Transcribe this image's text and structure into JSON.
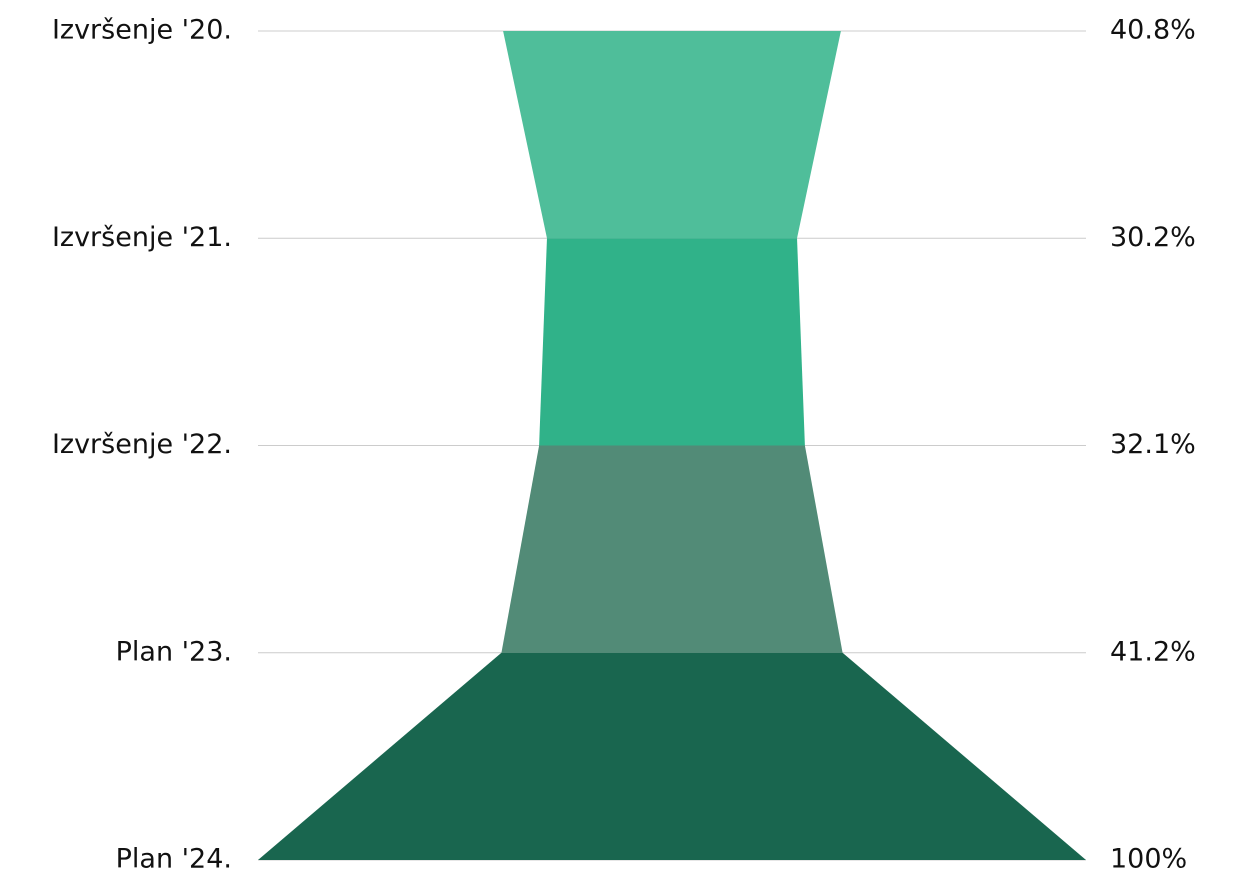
{
  "chart_data": {
    "type": "funnel",
    "categories": [
      "Izvršenje '20.",
      "Izvršenje '21.",
      "Izvršenje '22.",
      "Plan '23.",
      "Plan '24."
    ],
    "values": [
      40.8,
      30.2,
      32.1,
      41.2,
      100
    ],
    "value_labels": [
      "40.8%",
      "30.2%",
      "32.1%",
      "41.2%",
      "100%"
    ],
    "colors": [
      "#4fbe9a",
      "#30b289",
      "#528b77",
      "#19664f"
    ],
    "grid": true
  }
}
